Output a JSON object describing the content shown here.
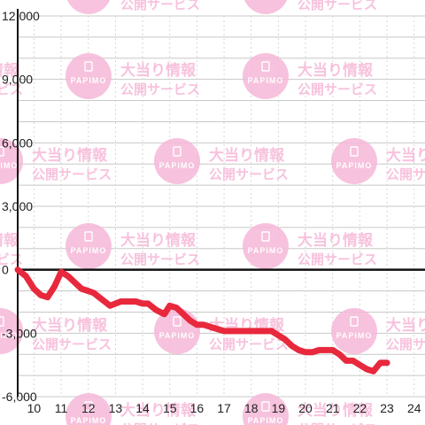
{
  "watermark": {
    "logo_text": "PAPIMO",
    "title": "大当り情報",
    "subtitle": "公開サービス",
    "color": "#f6b8d8"
  },
  "colors": {
    "line": "#e8283c",
    "axis": "#111111",
    "grid_major": "#c8c8c8",
    "grid_minor": "#d6d6d6",
    "background": "#ffffff"
  },
  "chart_data": {
    "type": "line",
    "title": "",
    "xlabel": "",
    "ylabel": "",
    "xlim": [
      9.4,
      24.4
    ],
    "ylim": [
      -6000,
      12000
    ],
    "x_ticks": [
      10,
      11,
      12,
      13,
      14,
      15,
      16,
      17,
      18,
      19,
      20,
      21,
      22,
      23,
      24
    ],
    "y_ticks": [
      -6000,
      -3000,
      0,
      3000,
      6000,
      9000,
      12000
    ],
    "y_tick_labels": [
      "-6,000",
      "-3,000",
      "0",
      "3,000",
      "6,000",
      "9,000",
      "12,000"
    ],
    "grid": true,
    "series": [
      {
        "x": [
          9.4,
          9.7,
          10.0,
          10.25,
          10.5,
          10.75,
          11.0,
          11.25,
          11.5,
          11.75,
          12.0,
          12.2,
          12.5,
          12.8,
          13.0,
          13.2,
          13.5,
          13.75,
          14.0,
          14.2,
          14.5,
          14.8,
          15.0,
          15.25,
          15.5,
          15.75,
          16.0,
          16.25,
          16.5,
          16.75,
          17.0,
          17.3,
          17.6,
          18.0,
          18.3,
          18.5,
          18.75,
          19.0,
          19.25,
          19.5,
          19.75,
          20.0,
          20.25,
          20.5,
          20.75,
          21.0,
          21.25,
          21.5,
          21.75,
          22.0,
          22.25,
          22.5,
          22.75,
          23.0
        ],
        "y": [
          0,
          -300,
          -900,
          -1200,
          -1300,
          -800,
          -100,
          -300,
          -600,
          -900,
          -1000,
          -1100,
          -1400,
          -1700,
          -1600,
          -1500,
          -1500,
          -1500,
          -1600,
          -1600,
          -1900,
          -2100,
          -1700,
          -1800,
          -2100,
          -2400,
          -2600,
          -2600,
          -2700,
          -2800,
          -2900,
          -2900,
          -2900,
          -2900,
          -2900,
          -2900,
          -2900,
          -3100,
          -3300,
          -3600,
          -3800,
          -3900,
          -3900,
          -3800,
          -3800,
          -3800,
          -4000,
          -4300,
          -4300,
          -4500,
          -4700,
          -4800,
          -4400,
          -4400
        ]
      }
    ]
  }
}
